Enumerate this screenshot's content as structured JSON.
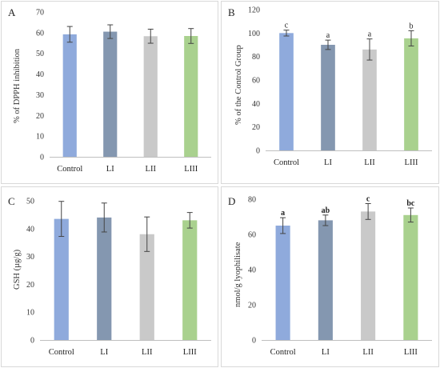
{
  "chart_data": [
    {
      "type": "bar",
      "panel_label": "A",
      "ylabel": "% of DPPH inhibition",
      "categories": [
        "Control",
        "LI",
        "LII",
        "LIII"
      ],
      "values": [
        59.2,
        60.5,
        58.3,
        58.4
      ],
      "errors": [
        3.8,
        3.3,
        3.4,
        3.6
      ],
      "letters": [
        "",
        "",
        "",
        ""
      ],
      "letters_bold": false,
      "bar_colors": [
        "#8faadc",
        "#8497b0",
        "#c9c9c9",
        "#a9d18e"
      ],
      "ylim": [
        0,
        70
      ],
      "yticks": [
        0,
        10,
        20,
        30,
        40,
        50,
        60,
        70
      ],
      "grid": false
    },
    {
      "type": "bar",
      "panel_label": "B",
      "ylabel": "% of the Control Group",
      "categories": [
        "Control",
        "LI",
        "LII",
        "LIII"
      ],
      "values": [
        100,
        90,
        86,
        95.5
      ],
      "errors": [
        2.5,
        4,
        9,
        6.5
      ],
      "letters": [
        "c",
        "a",
        "a",
        "b"
      ],
      "letters_bold": false,
      "bar_colors": [
        "#8faadc",
        "#8497b0",
        "#c9c9c9",
        "#a9d18e"
      ],
      "ylim": [
        0,
        120
      ],
      "yticks": [
        0,
        20,
        40,
        60,
        80,
        100,
        120
      ],
      "grid": false
    },
    {
      "type": "bar",
      "panel_label": "C",
      "ylabel": "GSH (µg/g)",
      "categories": [
        "Control",
        "LI",
        "LII",
        "LIII"
      ],
      "values": [
        43.5,
        44,
        38,
        43
      ],
      "errors": [
        6.3,
        5.2,
        6.2,
        2.8
      ],
      "letters": [
        "",
        "",
        "",
        ""
      ],
      "letters_bold": false,
      "bar_colors": [
        "#8faadc",
        "#8497b0",
        "#c9c9c9",
        "#a9d18e"
      ],
      "ylim": [
        0,
        50
      ],
      "yticks": [
        0,
        10,
        20,
        30,
        40,
        50
      ],
      "grid": false
    },
    {
      "type": "bar",
      "panel_label": "D",
      "ylabel": "nmol/g lyophilisate",
      "categories": [
        "Control",
        "LI",
        "LII",
        "LIII"
      ],
      "values": [
        65,
        68,
        73,
        71
      ],
      "errors": [
        4.5,
        3,
        4.5,
        4
      ],
      "letters": [
        "a",
        "ab",
        "c",
        "bc"
      ],
      "letters_bold": true,
      "bar_colors": [
        "#8faadc",
        "#8497b0",
        "#c9c9c9",
        "#a9d18e"
      ],
      "ylim": [
        0,
        80
      ],
      "yticks": [
        0,
        20,
        40,
        60,
        80
      ],
      "grid": false
    }
  ]
}
